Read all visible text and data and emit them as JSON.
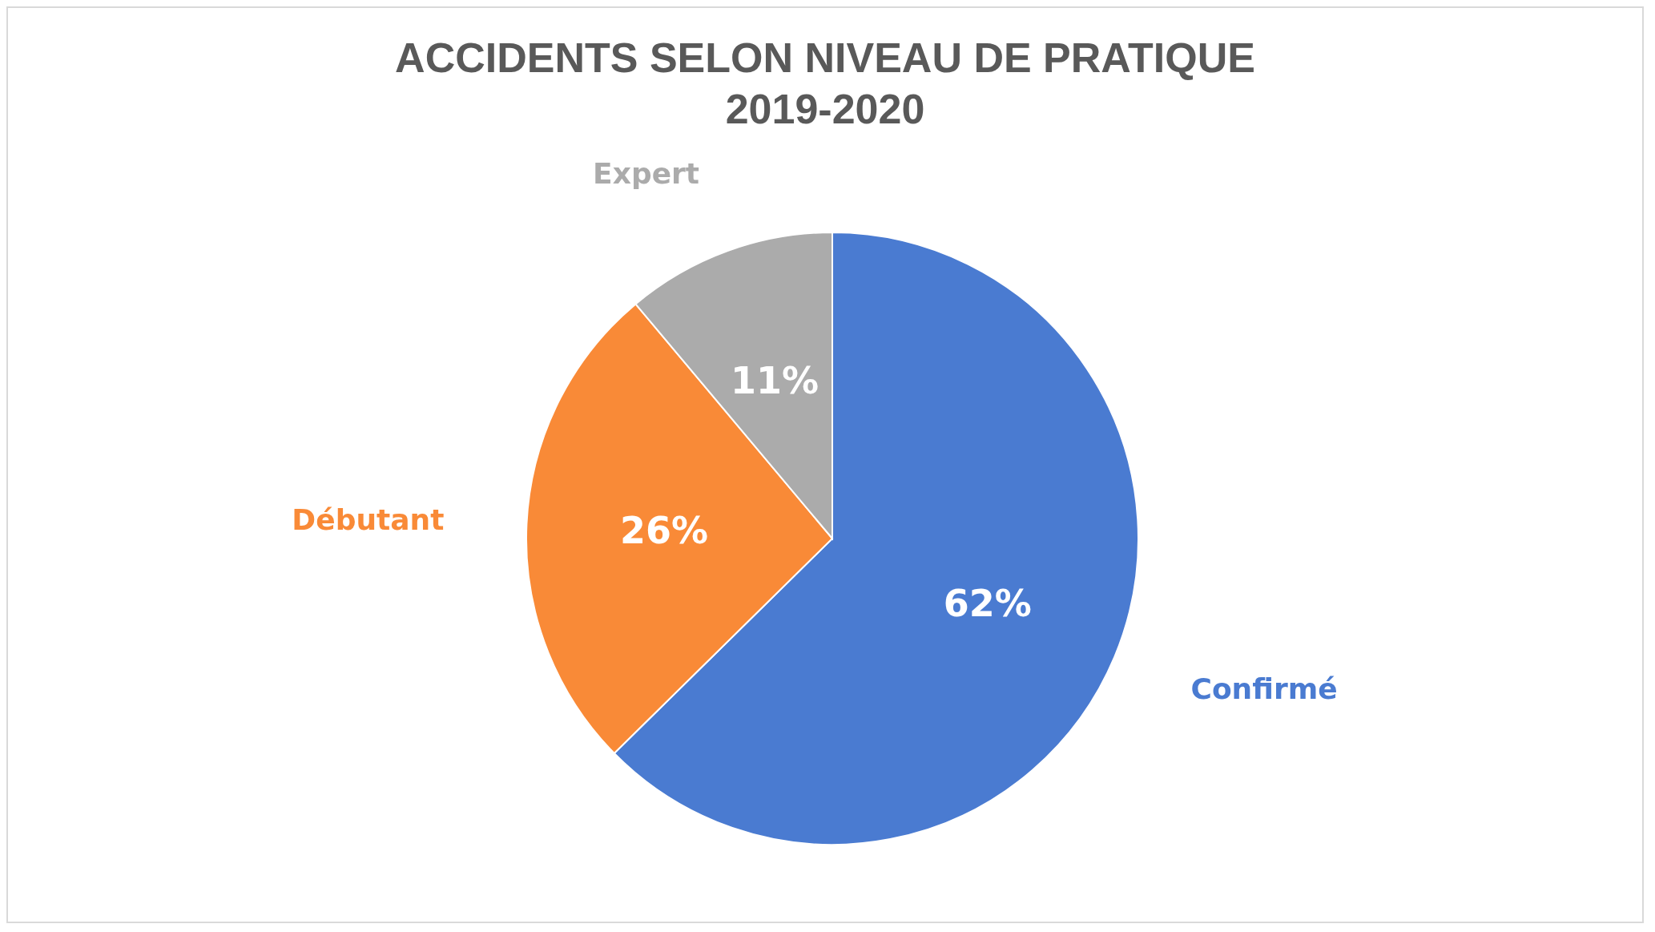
{
  "chart_data": {
    "type": "pie",
    "title": "ACCIDENTS SELON NIVEAU DE PRATIQUE\n2019-2020",
    "categories": [
      "Confirmé",
      "Débutant",
      "Expert"
    ],
    "values": [
      62,
      26,
      11
    ],
    "colors": [
      "#4a7bd1",
      "#f98a37",
      "#ababab"
    ],
    "value_labels": [
      "62%",
      "26%",
      "11%"
    ]
  }
}
